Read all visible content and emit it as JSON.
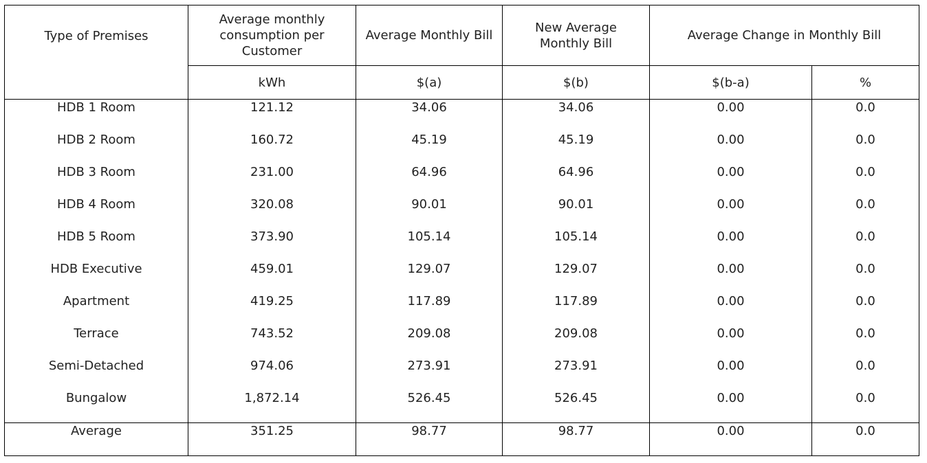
{
  "table": {
    "headers": {
      "type_of_premises": "Type of Premises",
      "avg_consumption": "Average monthly consumption per Customer",
      "avg_monthly_bill": "Average Monthly Bill",
      "new_avg_monthly_bill": "New Average Monthly Bill",
      "avg_change": "Average Change in Monthly Bill"
    },
    "units": {
      "consumption": "kWh",
      "bill_a": "$(a)",
      "bill_b": "$(b)",
      "change_abs": "$(b-a)",
      "change_pct": "%"
    },
    "rows": [
      {
        "premises": "HDB 1 Room",
        "kwh": "121.12",
        "bill_a": "34.06",
        "bill_b": "34.06",
        "change": "0.00",
        "pct": "0.0"
      },
      {
        "premises": "HDB 2 Room",
        "kwh": "160.72",
        "bill_a": "45.19",
        "bill_b": "45.19",
        "change": "0.00",
        "pct": "0.0"
      },
      {
        "premises": "HDB 3 Room",
        "kwh": "231.00",
        "bill_a": "64.96",
        "bill_b": "64.96",
        "change": "0.00",
        "pct": "0.0"
      },
      {
        "premises": "HDB 4 Room",
        "kwh": "320.08",
        "bill_a": "90.01",
        "bill_b": "90.01",
        "change": "0.00",
        "pct": "0.0"
      },
      {
        "premises": "HDB 5 Room",
        "kwh": "373.90",
        "bill_a": "105.14",
        "bill_b": "105.14",
        "change": "0.00",
        "pct": "0.0"
      },
      {
        "premises": "HDB Executive",
        "kwh": "459.01",
        "bill_a": "129.07",
        "bill_b": "129.07",
        "change": "0.00",
        "pct": "0.0"
      },
      {
        "premises": "Apartment",
        "kwh": "419.25",
        "bill_a": "117.89",
        "bill_b": "117.89",
        "change": "0.00",
        "pct": "0.0"
      },
      {
        "premises": "Terrace",
        "kwh": "743.52",
        "bill_a": "209.08",
        "bill_b": "209.08",
        "change": "0.00",
        "pct": "0.0"
      },
      {
        "premises": "Semi-Detached",
        "kwh": "974.06",
        "bill_a": "273.91",
        "bill_b": "273.91",
        "change": "0.00",
        "pct": "0.0"
      },
      {
        "premises": "Bungalow",
        "kwh": "1,872.14",
        "bill_a": "526.45",
        "bill_b": "526.45",
        "change": "0.00",
        "pct": "0.0"
      }
    ],
    "average": {
      "premises": "Average",
      "kwh": "351.25",
      "bill_a": "98.77",
      "bill_b": "98.77",
      "change": "0.00",
      "pct": "0.0"
    }
  }
}
